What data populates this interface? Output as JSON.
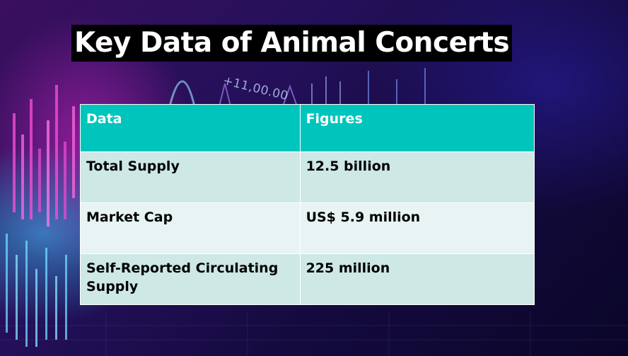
{
  "slide": {
    "title": "Key Data of Animal Concerts",
    "background_ticker": "+11,00.00"
  },
  "table": {
    "headers": [
      "Data",
      "Figures"
    ],
    "rows": [
      {
        "label": "Total Supply",
        "value": "12.5 billion"
      },
      {
        "label": "Market Cap",
        "value": "US$ 5.9 million"
      },
      {
        "label": "Self-Reported Circulating Supply",
        "value": "225 million"
      }
    ]
  },
  "colors": {
    "header_bg": "#00c5bd",
    "row_dark": "#cde8e5",
    "row_light": "#e7f4f3",
    "title_bg": "#000000",
    "title_text": "#ffffff"
  }
}
